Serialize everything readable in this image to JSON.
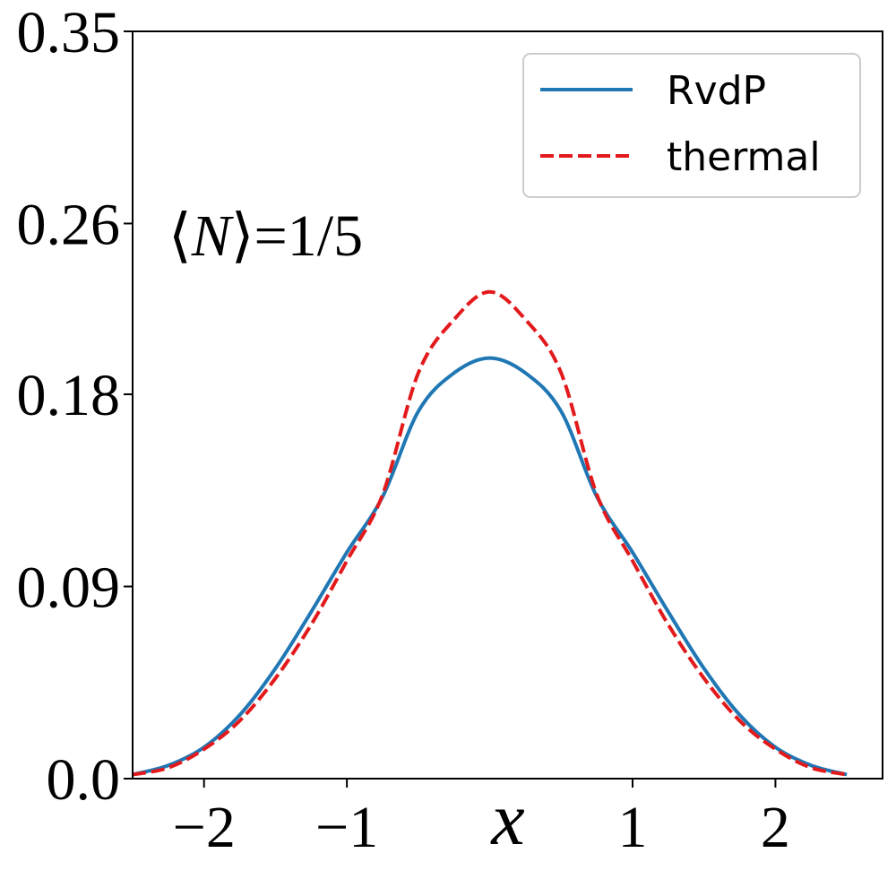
{
  "chart_data": {
    "type": "line",
    "title": "",
    "xlabel": "x",
    "ylabel": "",
    "xlim": [
      -2.5,
      2.75
    ],
    "ylim": [
      0.0,
      0.35
    ],
    "xticks": [
      -2,
      -1,
      1,
      2
    ],
    "xtick_labels": [
      "−2",
      "−1",
      "1",
      "2"
    ],
    "yticks": [
      0.0,
      0.09,
      0.18,
      0.26,
      0.35
    ],
    "ytick_labels": [
      "0.0",
      "0.09",
      "0.18",
      "0.26",
      "0.35"
    ],
    "grid": false,
    "legend_position": "top-right",
    "annotation": {
      "prefix": "⟨",
      "symbol": "N",
      "suffix": "⟩=1/5"
    },
    "x": [
      -2.5,
      -2.25,
      -2.0,
      -1.75,
      -1.5,
      -1.25,
      -1.0,
      -0.75,
      -0.5,
      -0.25,
      0.0,
      0.25,
      0.5,
      0.75,
      1.0,
      1.25,
      1.5,
      1.75,
      2.0,
      2.25,
      2.5
    ],
    "series": [
      {
        "name": "RvdP",
        "color": "#1f77b4",
        "style": "solid",
        "values": [
          0.0019,
          0.0062,
          0.0147,
          0.0298,
          0.0516,
          0.0781,
          0.106,
          0.132,
          0.172,
          0.19,
          0.197,
          0.19,
          0.172,
          0.132,
          0.106,
          0.0781,
          0.0516,
          0.0298,
          0.0147,
          0.0062,
          0.0019
        ]
      },
      {
        "name": "thermal",
        "color": "#e31a1c",
        "style": "dashed",
        "values": [
          0.0019,
          0.0051,
          0.0138,
          0.0271,
          0.047,
          0.0721,
          0.102,
          0.133,
          0.19,
          0.215,
          0.228,
          0.215,
          0.19,
          0.133,
          0.102,
          0.0721,
          0.047,
          0.0271,
          0.0138,
          0.0051,
          0.0019
        ]
      }
    ]
  }
}
